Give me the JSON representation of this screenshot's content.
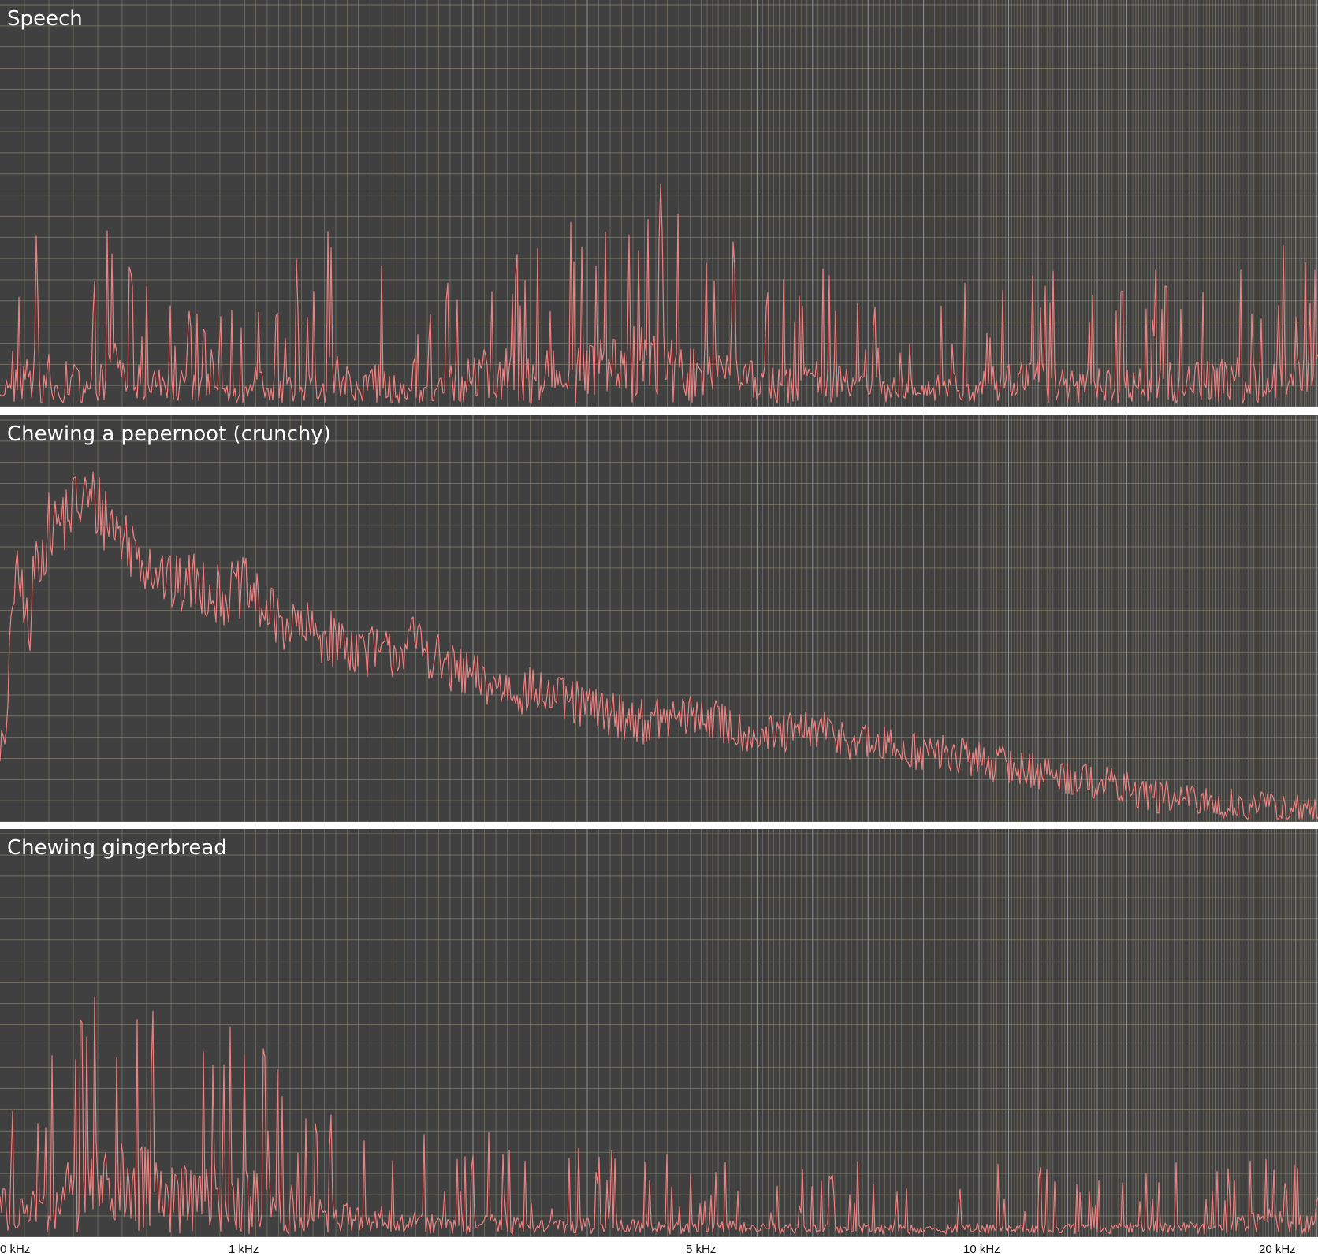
{
  "colors": {
    "panel_bg": "#404040",
    "grid": "#8a8370",
    "grid_major": "#9a9a9a",
    "line": "#f08080"
  },
  "chart_data": [
    {
      "type": "line",
      "title": "Speech",
      "x_scale": "log",
      "x_axis_unit": "Hz",
      "xlim": [
        0,
        22050
      ],
      "ylim": [
        0,
        1
      ],
      "grid": true,
      "x": [
        20,
        25,
        32,
        40,
        50,
        60,
        70,
        85,
        100,
        120,
        140,
        170,
        200,
        250,
        300,
        350,
        400,
        450,
        500,
        560,
        630,
        710,
        800,
        900,
        1000,
        1120,
        1250,
        1400,
        1600,
        1800,
        2000,
        2240,
        2500,
        2800,
        3150,
        3550,
        4000,
        4500,
        5000,
        5600,
        6300,
        7100,
        8000,
        9000,
        10000,
        11200,
        12500,
        14000,
        16000,
        18000,
        20000,
        22000
      ],
      "values": [
        0.05,
        0.18,
        0.34,
        0.12,
        0.28,
        0.1,
        0.24,
        0.14,
        0.34,
        0.22,
        0.29,
        0.08,
        0.26,
        0.04,
        0.18,
        0.12,
        0.25,
        0.3,
        0.32,
        0.06,
        0.22,
        0.12,
        0.2,
        0.07,
        0.1,
        0.18,
        0.05,
        0.2,
        0.16,
        0.28,
        0.12,
        0.24,
        0.04,
        0.18,
        0.26,
        0.22,
        0.3,
        0.38,
        0.26,
        0.22,
        0.16,
        0.2,
        0.14,
        0.12,
        0.16,
        0.18,
        0.2,
        0.16,
        0.18,
        0.2,
        0.22,
        0.24
      ]
    },
    {
      "type": "line",
      "title": "Chewing a pepernoot (crunchy)",
      "x_scale": "log",
      "x_axis_unit": "Hz",
      "xlim": [
        0,
        22050
      ],
      "ylim": [
        0,
        1
      ],
      "grid": true,
      "x": [
        20,
        25,
        32,
        40,
        50,
        60,
        70,
        85,
        100,
        120,
        140,
        170,
        200,
        250,
        300,
        350,
        400,
        450,
        500,
        560,
        630,
        710,
        800,
        900,
        1000,
        1120,
        1250,
        1400,
        1600,
        1800,
        2000,
        2240,
        2500,
        2800,
        3150,
        3550,
        4000,
        4500,
        5000,
        5600,
        6300,
        7100,
        8000,
        9000,
        10000,
        11200,
        12500,
        14000,
        16000,
        18000,
        20000,
        22000
      ],
      "values": [
        0.2,
        0.18,
        0.26,
        0.55,
        0.62,
        0.55,
        0.66,
        0.62,
        0.6,
        0.45,
        0.68,
        0.72,
        0.78,
        0.8,
        0.84,
        0.86,
        0.84,
        0.8,
        0.76,
        0.72,
        0.68,
        0.62,
        0.64,
        0.6,
        0.62,
        0.58,
        0.54,
        0.52,
        0.5,
        0.48,
        0.46,
        0.44,
        0.48,
        0.4,
        0.36,
        0.34,
        0.3,
        0.26,
        0.28,
        0.24,
        0.22,
        0.24,
        0.2,
        0.18,
        0.16,
        0.14,
        0.12,
        0.1,
        0.06,
        0.04,
        0.03,
        0.02
      ]
    },
    {
      "type": "line",
      "title": "Chewing gingerbread",
      "x_scale": "log",
      "x_axis_unit": "Hz",
      "xlim": [
        0,
        22050
      ],
      "ylim": [
        0,
        1
      ],
      "grid": true,
      "x": [
        20,
        25,
        32,
        40,
        50,
        60,
        70,
        85,
        100,
        120,
        140,
        170,
        200,
        250,
        300,
        350,
        400,
        450,
        500,
        560,
        630,
        710,
        800,
        900,
        1000,
        1120,
        1250,
        1400,
        1600,
        1800,
        2000,
        2240,
        2500,
        2800,
        3150,
        3550,
        4000,
        4500,
        5000,
        5600,
        6300,
        7100,
        8000,
        9000,
        10000,
        11200,
        12500,
        14000,
        16000,
        18000,
        20000,
        22000
      ],
      "values": [
        0.3,
        0.4,
        0.22,
        0.04,
        0.18,
        0.14,
        0.2,
        0.16,
        0.22,
        0.18,
        0.24,
        0.2,
        0.26,
        0.3,
        0.4,
        0.38,
        0.44,
        0.36,
        0.42,
        0.4,
        0.44,
        0.38,
        0.42,
        0.36,
        0.3,
        0.28,
        0.24,
        0.22,
        0.2,
        0.16,
        0.14,
        0.12,
        0.1,
        0.08,
        0.1,
        0.06,
        0.08,
        0.06,
        0.05,
        0.06,
        0.05,
        0.04,
        0.05,
        0.04,
        0.05,
        0.04,
        0.05,
        0.04,
        0.06,
        0.05,
        0.12,
        0.08
      ]
    }
  ],
  "x_axis": {
    "ticks": [
      {
        "label": "0 kHz",
        "value": 0
      },
      {
        "label": "1 kHz",
        "value": 1000
      },
      {
        "label": "5 kHz",
        "value": 5000
      },
      {
        "label": "10 kHz",
        "value": 10000
      },
      {
        "label": "20 kHz",
        "value": 20000
      }
    ]
  }
}
